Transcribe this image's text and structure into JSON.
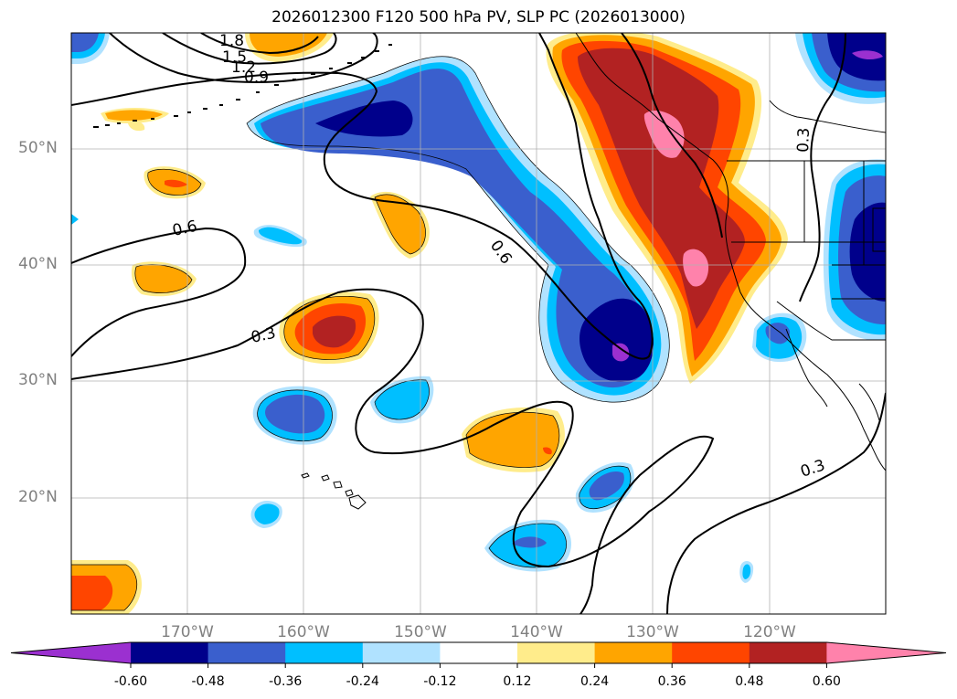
{
  "title": "2026012300 F120 500 hPa PV, SLP PC (2026013000)",
  "map": {
    "projection": "PlateCarree",
    "lon_range": [
      -180,
      -110
    ],
    "lat_range": [
      10,
      60
    ],
    "lat_ticks": [
      {
        "value": 20,
        "label": "20°N"
      },
      {
        "value": 30,
        "label": "30°N"
      },
      {
        "value": 40,
        "label": "40°N"
      },
      {
        "value": 50,
        "label": "50°N"
      }
    ],
    "lon_ticks": [
      {
        "value": -170,
        "label": "170°W"
      },
      {
        "value": -160,
        "label": "160°W"
      },
      {
        "value": -150,
        "label": "150°W"
      },
      {
        "value": -140,
        "label": "140°W"
      },
      {
        "value": -130,
        "label": "130°W"
      },
      {
        "value": -120,
        "label": "120°W"
      }
    ],
    "contour_labels": [
      "1.8",
      "1.5",
      "1.2",
      "0.9",
      "0.6",
      "0.6",
      "0.3",
      "0.3",
      "0.3"
    ]
  },
  "colorbar": {
    "levels": [
      "-0.60",
      "-0.48",
      "-0.36",
      "-0.24",
      "-0.12",
      "0.12",
      "0.24",
      "0.36",
      "0.48",
      "0.60"
    ],
    "colors": [
      "#9b30d0",
      "#00008b",
      "#3a5fcd",
      "#00bfff",
      "#b0e2ff",
      "#ffffff",
      "#ffec8b",
      "#ffa500",
      "#ff4500",
      "#b22222",
      "#ff82ab"
    ]
  }
}
